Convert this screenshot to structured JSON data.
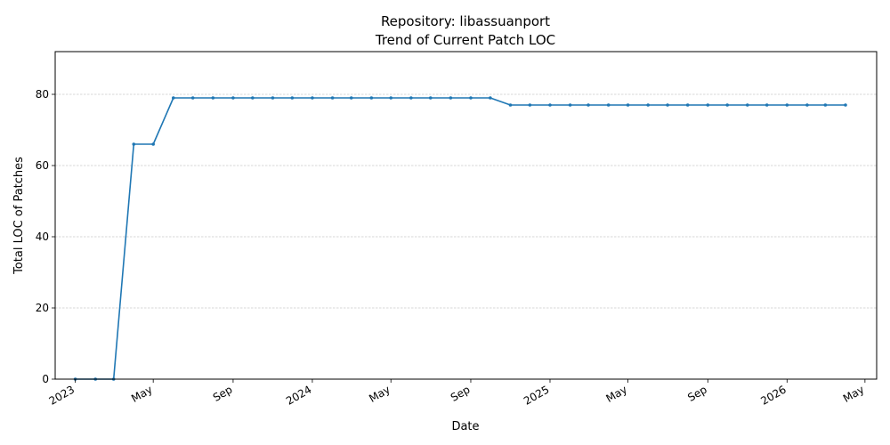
{
  "chart_data": {
    "type": "line",
    "title_line1": "Repository: libassuanport",
    "title_line2": "Trend of Current Patch LOC",
    "xlabel": "Date",
    "ylabel": "Total LOC of Patches",
    "ylim": [
      0,
      92
    ],
    "xlim": [
      "2022-12-01",
      "2026-05-19"
    ],
    "grid": "y-dashed",
    "line_color": "#1f77b4",
    "y_ticks": [
      0,
      20,
      40,
      60,
      80
    ],
    "x_ticks": [
      {
        "date": "2023-01-01",
        "label": "2023"
      },
      {
        "date": "2023-05-01",
        "label": "May"
      },
      {
        "date": "2023-09-01",
        "label": "Sep"
      },
      {
        "date": "2024-01-01",
        "label": "2024"
      },
      {
        "date": "2024-05-01",
        "label": "May"
      },
      {
        "date": "2024-09-01",
        "label": "Sep"
      },
      {
        "date": "2025-01-01",
        "label": "2025"
      },
      {
        "date": "2025-05-01",
        "label": "May"
      },
      {
        "date": "2025-09-01",
        "label": "Sep"
      },
      {
        "date": "2026-01-01",
        "label": "2026"
      },
      {
        "date": "2026-05-01",
        "label": "May"
      }
    ],
    "series": [
      {
        "points": [
          {
            "x": "2023-01-01",
            "y": 0
          },
          {
            "x": "2023-02-01",
            "y": 0
          },
          {
            "x": "2023-03-01",
            "y": 0
          },
          {
            "x": "2023-04-01",
            "y": 66
          },
          {
            "x": "2023-05-01",
            "y": 66
          },
          {
            "x": "2023-06-01",
            "y": 79
          },
          {
            "x": "2023-07-01",
            "y": 79
          },
          {
            "x": "2023-08-01",
            "y": 79
          },
          {
            "x": "2023-09-01",
            "y": 79
          },
          {
            "x": "2023-10-01",
            "y": 79
          },
          {
            "x": "2023-11-01",
            "y": 79
          },
          {
            "x": "2023-12-01",
            "y": 79
          },
          {
            "x": "2024-01-01",
            "y": 79
          },
          {
            "x": "2024-02-01",
            "y": 79
          },
          {
            "x": "2024-03-01",
            "y": 79
          },
          {
            "x": "2024-04-01",
            "y": 79
          },
          {
            "x": "2024-05-01",
            "y": 79
          },
          {
            "x": "2024-06-01",
            "y": 79
          },
          {
            "x": "2024-07-01",
            "y": 79
          },
          {
            "x": "2024-08-01",
            "y": 79
          },
          {
            "x": "2024-09-01",
            "y": 79
          },
          {
            "x": "2024-10-01",
            "y": 79
          },
          {
            "x": "2024-11-01",
            "y": 77
          },
          {
            "x": "2024-12-01",
            "y": 77
          },
          {
            "x": "2025-01-01",
            "y": 77
          },
          {
            "x": "2025-02-01",
            "y": 77
          },
          {
            "x": "2025-03-01",
            "y": 77
          },
          {
            "x": "2025-04-01",
            "y": 77
          },
          {
            "x": "2025-05-01",
            "y": 77
          },
          {
            "x": "2025-06-01",
            "y": 77
          },
          {
            "x": "2025-07-01",
            "y": 77
          },
          {
            "x": "2025-08-01",
            "y": 77
          },
          {
            "x": "2025-09-01",
            "y": 77
          },
          {
            "x": "2025-10-01",
            "y": 77
          },
          {
            "x": "2025-11-01",
            "y": 77
          },
          {
            "x": "2025-12-01",
            "y": 77
          },
          {
            "x": "2026-01-01",
            "y": 77
          },
          {
            "x": "2026-02-01",
            "y": 77
          },
          {
            "x": "2026-03-01",
            "y": 77
          },
          {
            "x": "2026-04-01",
            "y": 77
          }
        ]
      }
    ]
  }
}
